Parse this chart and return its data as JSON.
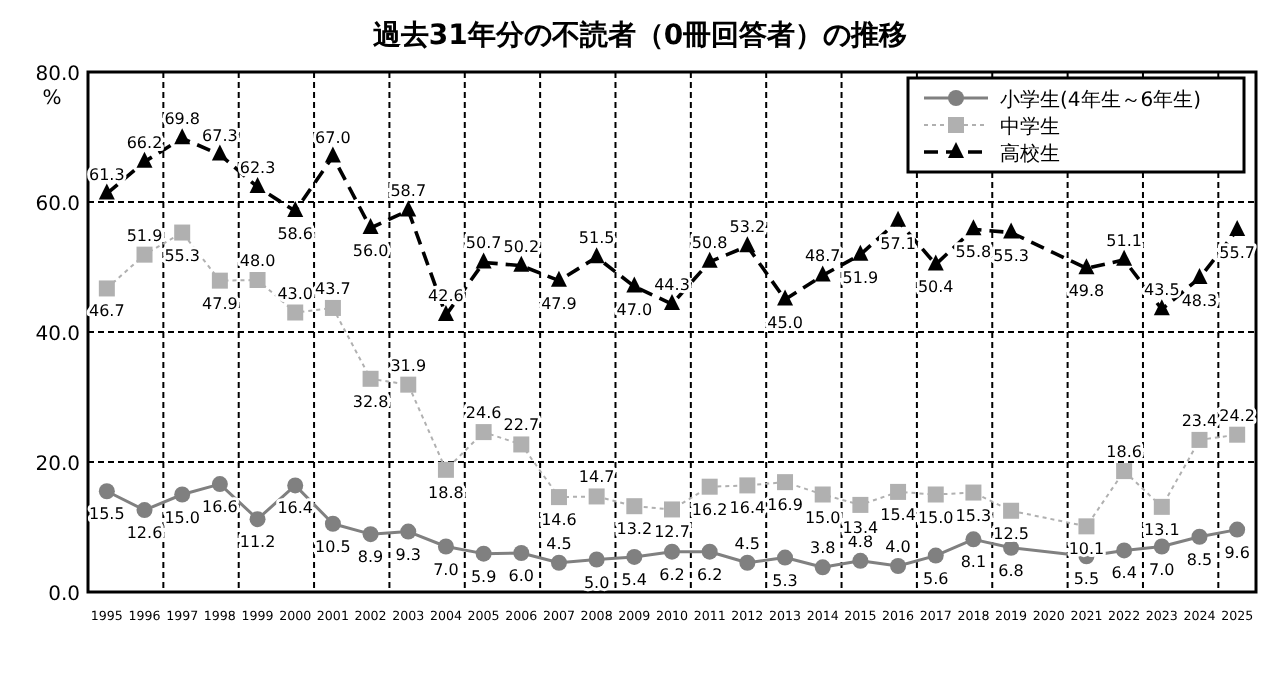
{
  "chart_data": {
    "type": "line",
    "title": "過去31年分の不読者（0冊回答者）の推移",
    "ylabel": "%",
    "categories": [
      "1995",
      "1996",
      "1997",
      "1998",
      "1999",
      "2000",
      "2001",
      "2002",
      "2003",
      "2004",
      "2005",
      "2006",
      "2007",
      "2008",
      "2009",
      "2010",
      "2011",
      "2012",
      "2013",
      "2014",
      "2015",
      "2016",
      "2017",
      "2018",
      "2019",
      "2020",
      "2021",
      "2022",
      "2023",
      "2024",
      "2025"
    ],
    "series": [
      {
        "name": "小学生(4年生～6年生)",
        "color": "#808080",
        "marker": "circle",
        "line_style": "solid",
        "values": [
          15.5,
          12.6,
          15.0,
          16.6,
          11.2,
          16.4,
          10.5,
          8.9,
          9.3,
          7.0,
          5.9,
          6.0,
          4.5,
          5.0,
          5.4,
          6.2,
          6.2,
          4.5,
          5.3,
          3.8,
          4.8,
          4.0,
          5.6,
          8.1,
          6.8,
          null,
          5.5,
          6.4,
          7.0,
          8.5,
          9.6
        ],
        "value_labels": [
          "15.5",
          "12.6",
          "15.0",
          "16.6",
          "11.2",
          "16.4",
          "10.5",
          "8.9",
          "9.3",
          "7.0",
          "5.9",
          "6.0",
          "4.5",
          "5.0",
          "5.4",
          "6.2",
          "6.2",
          "4.5",
          "5.3",
          "3.8",
          "4.8",
          "4.0",
          "5.6",
          "8.1",
          "6.8",
          null,
          "5.5",
          "6.4",
          "7.0",
          "8.5",
          "9.6"
        ]
      },
      {
        "name": "中学生",
        "color": "#b0b0b0",
        "marker": "square",
        "line_style": "dotted",
        "values": [
          46.7,
          51.9,
          55.3,
          47.9,
          48.0,
          43.0,
          43.7,
          32.8,
          31.9,
          18.8,
          24.6,
          22.7,
          14.6,
          14.7,
          13.2,
          12.7,
          16.2,
          16.4,
          16.9,
          15.0,
          13.4,
          15.4,
          15.0,
          15.3,
          12.5,
          null,
          10.1,
          18.6,
          13.1,
          23.4,
          24.2
        ],
        "value_labels": [
          "46.7",
          "51.9",
          "55.3",
          "47.9",
          "48.0",
          "43.0",
          "43.7",
          "32.8",
          "31.9",
          "18.8",
          "24.6",
          "22.7",
          "14.6",
          "14.7",
          "13.2",
          "12.7",
          "16.2",
          "16.4",
          "16.9",
          "15.0",
          "13.4",
          "15.4",
          "15.0",
          "15.3",
          "12.5",
          null,
          "10.1",
          "18.6",
          "13.1",
          "23.4",
          "24.2"
        ]
      },
      {
        "name": "高校生",
        "color": "#000000",
        "marker": "triangle",
        "line_style": "dashed",
        "values": [
          61.3,
          66.2,
          69.8,
          67.3,
          62.3,
          58.6,
          67.0,
          56.0,
          58.7,
          42.6,
          50.7,
          50.2,
          47.9,
          51.5,
          47.0,
          44.3,
          50.8,
          53.2,
          45.0,
          48.7,
          51.9,
          57.1,
          50.4,
          55.8,
          55.3,
          null,
          49.8,
          51.1,
          43.5,
          48.3,
          55.7
        ],
        "value_labels": [
          "61.3",
          "66.2",
          "69.8",
          "67.3",
          "62.3",
          "58.6",
          "67.0",
          "56.0",
          "58.7",
          "42.6",
          "50.7",
          "50.2",
          "47.9",
          "51.5",
          "47.0",
          "44.3",
          "50.8",
          "53.2",
          "45.0",
          "48.7",
          "51.9",
          "57.1",
          "50.4",
          "55.8",
          "55.3",
          null,
          "49.8",
          "51.1",
          "43.5",
          "48.3",
          "55.7"
        ]
      }
    ],
    "ylim": [
      0,
      80
    ],
    "yticks": [
      {
        "value": 0,
        "label": "0.0"
      },
      {
        "value": 20,
        "label": "20.0"
      },
      {
        "value": 40,
        "label": "40.0"
      },
      {
        "value": 60,
        "label": "60.0"
      },
      {
        "value": 80,
        "label": "80.0"
      }
    ],
    "grid": true,
    "legend": "top right"
  }
}
